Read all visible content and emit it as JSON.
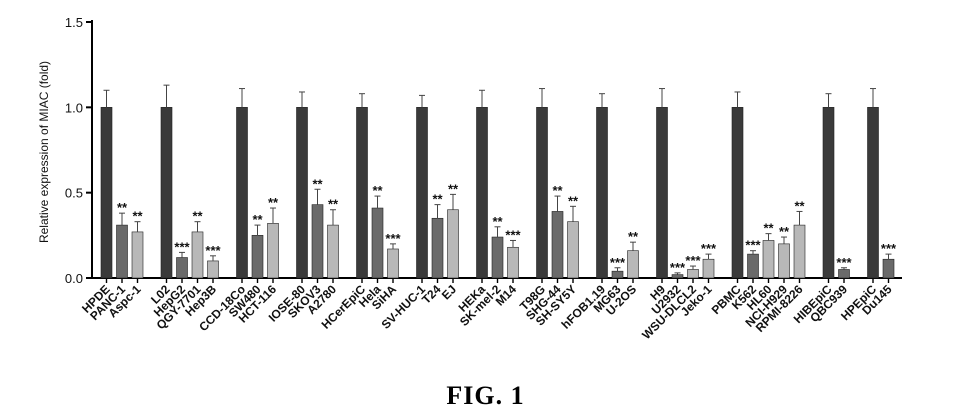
{
  "figure_label": "FIG. 1",
  "chart_data": {
    "type": "bar",
    "title": "",
    "xlabel": "",
    "ylabel": "Relative expression of MIAC (fold)",
    "ylim": [
      0,
      1.5
    ],
    "yticks": [
      "0.0",
      "0.5",
      "1.0",
      "1.5"
    ],
    "grid": false,
    "legend": "none",
    "colors": {
      "control": "#3a3a3a",
      "treated_dark": "#6a6a6a",
      "treated_light": "#b8b8b8"
    },
    "categories": [
      "HPDE",
      "PANC-1",
      "Aspc-1",
      "L02",
      "HepG2",
      "QGY-7701",
      "Hep3B",
      "CCD-18Co",
      "SW480",
      "HCT-116",
      "IOSE-80",
      "SKOV3",
      "A2780",
      "HCerEpiC",
      "Hela",
      "SiHA",
      "SV-HUC-1",
      "T24",
      "EJ",
      "HEKa",
      "SK-mel-2",
      "M14",
      "T98G",
      "SHG-44",
      "SH-SY5Y",
      "hFOB1.19",
      "MG63",
      "U-2OS",
      "H9",
      "U2932",
      "WSU-DLCL2",
      "Jeko-1",
      "PBMC",
      "K562",
      "HL60",
      "NCI-H929",
      "RPMI-8226",
      "HIBEpiC",
      "QBC939",
      "HPEpiC",
      "Du145"
    ],
    "groups": [
      [
        {
          "v": 1.0,
          "e": 0.1,
          "sig": "",
          "shade": "control"
        },
        {
          "v": 0.31,
          "e": 0.07,
          "sig": "**",
          "shade": "dark"
        },
        {
          "v": 0.27,
          "e": 0.06,
          "sig": "**",
          "shade": "light"
        }
      ],
      [
        {
          "v": 1.0,
          "e": 0.13,
          "sig": "",
          "shade": "control"
        },
        {
          "v": 0.12,
          "e": 0.03,
          "sig": "***",
          "shade": "dark"
        },
        {
          "v": 0.27,
          "e": 0.06,
          "sig": "**",
          "shade": "light"
        },
        {
          "v": 0.1,
          "e": 0.03,
          "sig": "***",
          "shade": "light"
        }
      ],
      [
        {
          "v": 1.0,
          "e": 0.11,
          "sig": "",
          "shade": "control"
        },
        {
          "v": 0.25,
          "e": 0.06,
          "sig": "**",
          "shade": "dark"
        },
        {
          "v": 0.32,
          "e": 0.09,
          "sig": "**",
          "shade": "light"
        }
      ],
      [
        {
          "v": 1.0,
          "e": 0.09,
          "sig": "",
          "shade": "control"
        },
        {
          "v": 0.43,
          "e": 0.09,
          "sig": "**",
          "shade": "dark"
        },
        {
          "v": 0.31,
          "e": 0.09,
          "sig": "**",
          "shade": "light"
        }
      ],
      [
        {
          "v": 1.0,
          "e": 0.08,
          "sig": "",
          "shade": "control"
        },
        {
          "v": 0.41,
          "e": 0.07,
          "sig": "**",
          "shade": "dark"
        },
        {
          "v": 0.17,
          "e": 0.03,
          "sig": "***",
          "shade": "light"
        }
      ],
      [
        {
          "v": 1.0,
          "e": 0.07,
          "sig": "",
          "shade": "control"
        },
        {
          "v": 0.35,
          "e": 0.08,
          "sig": "**",
          "shade": "dark"
        },
        {
          "v": 0.4,
          "e": 0.09,
          "sig": "**",
          "shade": "light"
        }
      ],
      [
        {
          "v": 1.0,
          "e": 0.1,
          "sig": "",
          "shade": "control"
        },
        {
          "v": 0.24,
          "e": 0.06,
          "sig": "**",
          "shade": "dark"
        },
        {
          "v": 0.18,
          "e": 0.04,
          "sig": "***",
          "shade": "light"
        }
      ],
      [
        {
          "v": 1.0,
          "e": 0.11,
          "sig": "",
          "shade": "control"
        },
        {
          "v": 0.39,
          "e": 0.09,
          "sig": "**",
          "shade": "dark"
        },
        {
          "v": 0.33,
          "e": 0.09,
          "sig": "**",
          "shade": "light"
        }
      ],
      [
        {
          "v": 1.0,
          "e": 0.08,
          "sig": "",
          "shade": "control"
        },
        {
          "v": 0.04,
          "e": 0.02,
          "sig": "***",
          "shade": "dark"
        },
        {
          "v": 0.16,
          "e": 0.05,
          "sig": "**",
          "shade": "light"
        }
      ],
      [
        {
          "v": 1.0,
          "e": 0.11,
          "sig": "",
          "shade": "control"
        },
        {
          "v": 0.02,
          "e": 0.01,
          "sig": "***",
          "shade": "dark"
        },
        {
          "v": 0.05,
          "e": 0.02,
          "sig": "***",
          "shade": "light"
        },
        {
          "v": 0.11,
          "e": 0.03,
          "sig": "***",
          "shade": "light"
        }
      ],
      [
        {
          "v": 1.0,
          "e": 0.09,
          "sig": "",
          "shade": "control"
        },
        {
          "v": 0.14,
          "e": 0.02,
          "sig": "***",
          "shade": "dark"
        },
        {
          "v": 0.22,
          "e": 0.04,
          "sig": "**",
          "shade": "light"
        },
        {
          "v": 0.2,
          "e": 0.04,
          "sig": "**",
          "shade": "light"
        },
        {
          "v": 0.31,
          "e": 0.08,
          "sig": "**",
          "shade": "light"
        }
      ],
      [
        {
          "v": 1.0,
          "e": 0.08,
          "sig": "",
          "shade": "control"
        },
        {
          "v": 0.05,
          "e": 0.01,
          "sig": "***",
          "shade": "dark"
        }
      ],
      [
        {
          "v": 1.0,
          "e": 0.11,
          "sig": "",
          "shade": "control"
        },
        {
          "v": 0.11,
          "e": 0.03,
          "sig": "***",
          "shade": "dark"
        }
      ]
    ]
  }
}
